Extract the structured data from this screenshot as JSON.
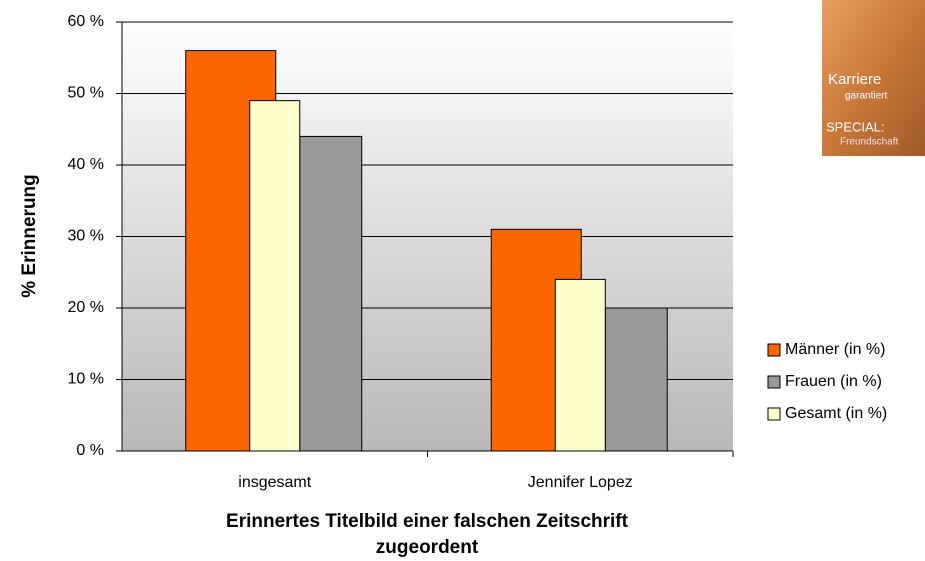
{
  "chart_data": {
    "type": "bar",
    "categories": [
      "insgesamt",
      "Jennifer Lopez"
    ],
    "series": [
      {
        "name": "Männer (in %)",
        "color": "#ff6600",
        "values": [
          56,
          31
        ]
      },
      {
        "name": "Frauen (in %)",
        "color": "#999999",
        "values": [
          44,
          20
        ]
      },
      {
        "name": "Gesamt (in %)",
        "color": "#ffffcc",
        "values": [
          49,
          24
        ]
      }
    ],
    "ylim": [
      0,
      60
    ],
    "yticks": [
      {
        "value": 0,
        "label": "0 %"
      },
      {
        "value": 10,
        "label": "10 %"
      },
      {
        "value": 20,
        "label": "20 %"
      },
      {
        "value": 30,
        "label": "30 %"
      },
      {
        "value": 40,
        "label": "40 %"
      },
      {
        "value": 50,
        "label": "50 %"
      },
      {
        "value": 60,
        "label": "60 %"
      }
    ],
    "y_label": "% Erinnerung",
    "x_label": [
      "Erinnertes Titelbild einer falschen Zeitschrift",
      "zugeordent"
    ],
    "grid": true,
    "legend": "right"
  },
  "cover_texts": [
    "Karriere",
    "garantiert",
    "SPECIAL:",
    "Freundschaft"
  ]
}
